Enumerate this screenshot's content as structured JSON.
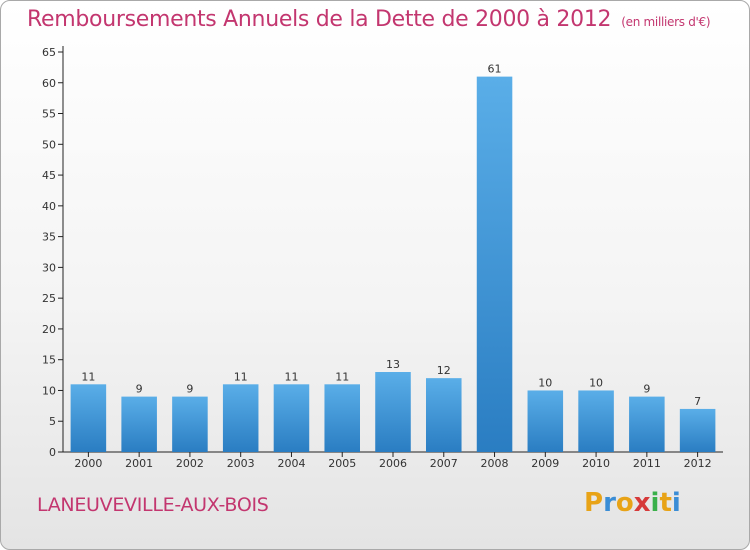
{
  "header": {
    "title": "Remboursements Annuels de la Dette de 2000 à 2012",
    "units": "(en milliers d'€)"
  },
  "footer": {
    "commune": "LANEUVEVILLE-AUX-BOIS",
    "logo_letters": [
      "P",
      "r",
      "o",
      "x",
      "i",
      "t",
      "i"
    ],
    "logo_colors": [
      "#e8a317",
      "#3a8dd6",
      "#e8a317",
      "#d63a3a",
      "#3ab04a",
      "#e8a317",
      "#3a8dd6"
    ]
  },
  "chart_data": {
    "type": "bar",
    "title": "Remboursements Annuels de la Dette de 2000 à 2012",
    "categories": [
      "2000",
      "2001",
      "2002",
      "2003",
      "2004",
      "2005",
      "2006",
      "2007",
      "2008",
      "2009",
      "2010",
      "2011",
      "2012"
    ],
    "values": [
      11,
      9,
      9,
      11,
      11,
      11,
      13,
      12,
      61,
      10,
      10,
      9,
      7
    ],
    "ylim": [
      0,
      65
    ],
    "yticks": [
      0,
      5,
      10,
      15,
      20,
      25,
      30,
      35,
      40,
      45,
      50,
      55,
      60,
      65
    ],
    "grid": false,
    "colors": {
      "bar_top": "#5aaee8",
      "bar_bottom": "#2a7dc2",
      "axis": "#222222"
    }
  }
}
